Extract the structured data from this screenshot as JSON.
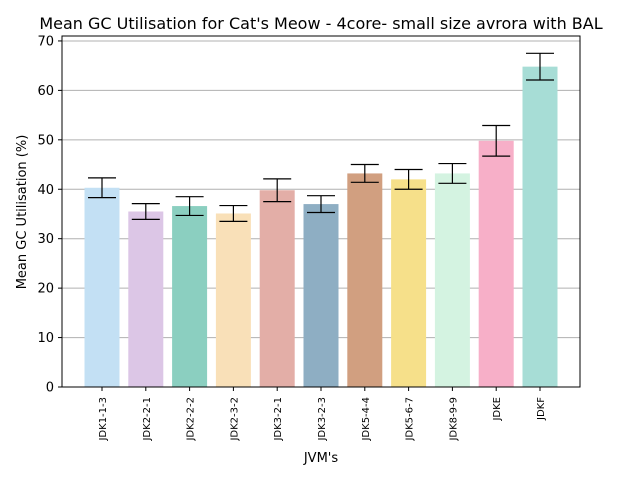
{
  "chart_data": {
    "type": "bar",
    "title": "Mean GC Utilisation for Cat's Meow - 4core- small size avrora with BAL",
    "xlabel": "JVM's",
    "ylabel": "Mean GC Utilisation (%)",
    "ylim": [
      0,
      71
    ],
    "yticks": [
      0,
      10,
      20,
      30,
      40,
      50,
      60,
      70
    ],
    "grid": "horizontal",
    "categories": [
      "JDK1-1-3",
      "JDK2-2-1",
      "JDK2-2-2",
      "JDK2-3-2",
      "JDK3-2-1",
      "JDK3-2-3",
      "JDK5-4-4",
      "JDK5-6-7",
      "JDK8-9-9",
      "JDKE",
      "JDKF"
    ],
    "values": [
      40.3,
      35.5,
      36.6,
      35.1,
      39.8,
      37.0,
      43.2,
      42.0,
      43.2,
      49.8,
      64.8
    ],
    "errors": [
      2.0,
      1.6,
      1.9,
      1.6,
      2.3,
      1.7,
      1.8,
      2.0,
      2.0,
      3.1,
      2.7
    ],
    "colors": [
      "#c3e0f4",
      "#dcc6e6",
      "#8bcfc0",
      "#f9e0b8",
      "#e3aea7",
      "#8eaec3",
      "#d19f80",
      "#f6e08a",
      "#d4f3e1",
      "#f7afc8",
      "#a7ddd6"
    ]
  }
}
